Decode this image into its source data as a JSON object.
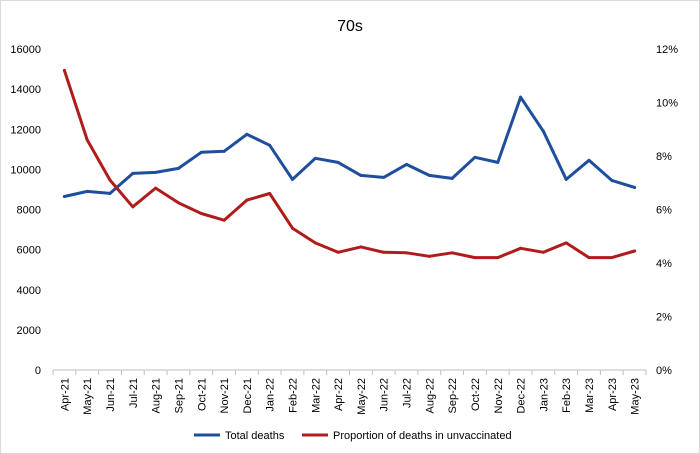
{
  "chart_data": {
    "type": "line",
    "title": "70s",
    "categories": [
      "Apr-21",
      "May-21",
      "Jun-21",
      "Jul-21",
      "Aug-21",
      "Sep-21",
      "Oct-21",
      "Nov-21",
      "Dec-21",
      "Jan-22",
      "Feb-22",
      "Mar-22",
      "Apr-22",
      "May-22",
      "Jun-22",
      "Jul-22",
      "Aug-22",
      "Sep-22",
      "Oct-22",
      "Nov-22",
      "Dec-22",
      "Jan-23",
      "Feb-23",
      "Mar-23",
      "Apr-23",
      "May-23"
    ],
    "y_left": {
      "ylim": [
        0,
        16000
      ],
      "ticks": [
        "0",
        "2000",
        "4000",
        "6000",
        "8000",
        "10000",
        "12000",
        "14000",
        "16000"
      ]
    },
    "y_right": {
      "ylim": [
        0,
        12
      ],
      "ticks": [
        "0%",
        "2%",
        "4%",
        "6%",
        "8%",
        "10%",
        "12%"
      ]
    },
    "grid": false,
    "legend_position": "bottom",
    "series": [
      {
        "name": "Total deaths",
        "axis": "left",
        "color": "#1f4e9c",
        "values": [
          8650,
          8900,
          8800,
          9800,
          9850,
          10050,
          10850,
          10900,
          11750,
          11200,
          9500,
          10550,
          10350,
          9700,
          9600,
          10250,
          9700,
          9550,
          10600,
          10350,
          13600,
          11900,
          9500,
          10450,
          9450,
          9100
        ]
      },
      {
        "name": "Proportion of deaths in unvaccinated",
        "axis": "right",
        "color": "#b01c1c",
        "values": [
          11.2,
          8.6,
          7.1,
          6.1,
          6.8,
          6.25,
          5.85,
          5.6,
          6.35,
          6.6,
          5.3,
          4.75,
          4.4,
          4.6,
          4.4,
          4.38,
          4.25,
          4.38,
          4.2,
          4.2,
          4.55,
          4.4,
          4.75,
          4.2,
          4.2,
          4.45
        ]
      }
    ]
  }
}
